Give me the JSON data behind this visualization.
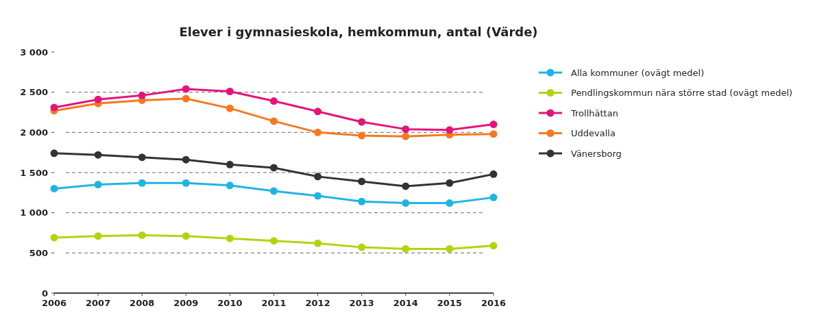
{
  "chart_data": {
    "type": "line",
    "title": "Elever i gymnasieskola, hemkommun, antal (Värde)",
    "x": [
      2006,
      2007,
      2008,
      2009,
      2010,
      2011,
      2012,
      2013,
      2014,
      2015,
      2016
    ],
    "xlim": [
      2006,
      2016
    ],
    "xticks": [
      2006,
      2007,
      2008,
      2009,
      2010,
      2011,
      2012,
      2013,
      2014,
      2015,
      2016
    ],
    "ylim": [
      0,
      3000
    ],
    "yticks": [
      {
        "value": 0,
        "label": "0"
      },
      {
        "value": 500,
        "label": "500"
      },
      {
        "value": 1000,
        "label": "1 000"
      },
      {
        "value": 1500,
        "label": "1 500"
      },
      {
        "value": 2000,
        "label": "2 000"
      },
      {
        "value": 2500,
        "label": "2 500"
      },
      {
        "value": 3000,
        "label": "3 000"
      }
    ],
    "grid": "y",
    "legend": "right",
    "marker": "circle",
    "line_style": "solid",
    "series": [
      {
        "name": "Alla kommuner (ovägt medel)",
        "color": "#1fb4e4",
        "values": [
          1300,
          1350,
          1370,
          1370,
          1340,
          1270,
          1210,
          1140,
          1120,
          1120,
          1190
        ]
      },
      {
        "name": "Pendlingskommun nära större stad (ovägt medel)",
        "color": "#b5d20e",
        "values": [
          690,
          710,
          720,
          710,
          680,
          650,
          620,
          570,
          550,
          550,
          590
        ]
      },
      {
        "name": "Trollhättan",
        "color": "#e6137a",
        "values": [
          2310,
          2410,
          2460,
          2540,
          2510,
          2390,
          2260,
          2130,
          2040,
          2030,
          2100
        ]
      },
      {
        "name": "Uddevalla",
        "color": "#f47920",
        "values": [
          2270,
          2360,
          2400,
          2420,
          2300,
          2140,
          2000,
          1960,
          1950,
          1970,
          1980
        ]
      },
      {
        "name": "Vänersborg",
        "color": "#333333",
        "values": [
          1740,
          1720,
          1690,
          1660,
          1600,
          1560,
          1450,
          1390,
          1330,
          1370,
          1480
        ]
      }
    ]
  }
}
